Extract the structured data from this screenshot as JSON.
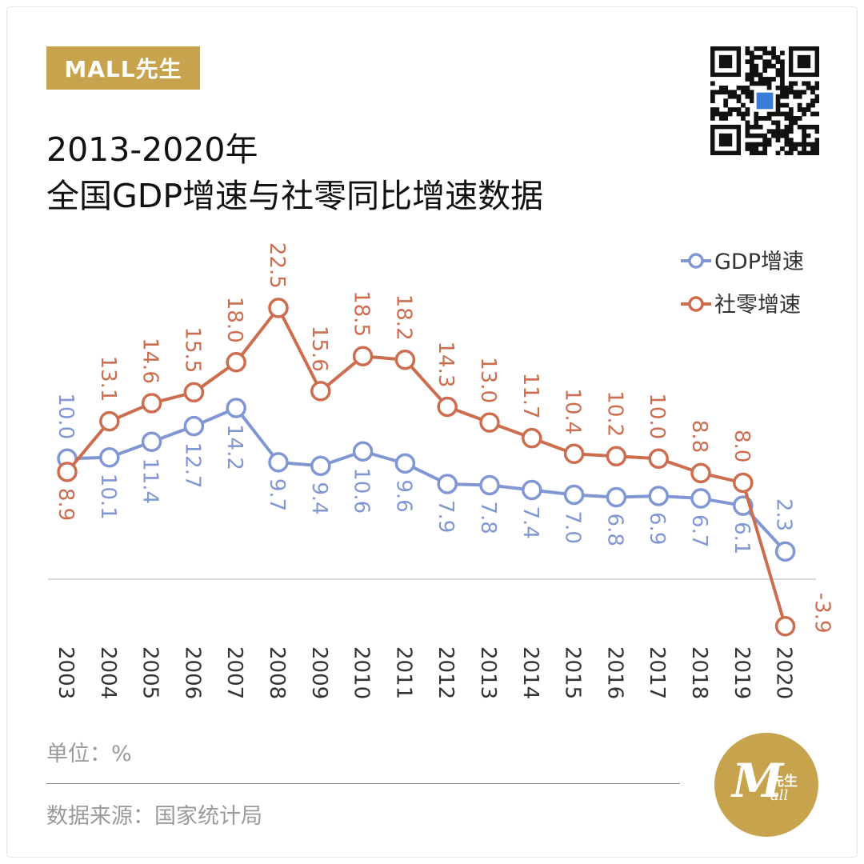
{
  "brand": {
    "tag": "MALL先生"
  },
  "header": {
    "title_line1": "2013-2020年",
    "title_line2": "全国GDP增速与社零同比增速数据"
  },
  "footer": {
    "unit": "单位：%",
    "source": "数据来源：国家统计局"
  },
  "logo": {
    "mark": "M",
    "zh": "先生",
    "en": "all"
  },
  "icons": {
    "qr": "qr-code-icon"
  },
  "colors": {
    "gold": "#c7a34d",
    "gdp": "#8097d4",
    "retail": "#cc6d4f"
  },
  "chart_data": {
    "type": "line",
    "categories": [
      "2003",
      "2004",
      "2005",
      "2006",
      "2007",
      "2008",
      "2009",
      "2010",
      "2011",
      "2012",
      "2013",
      "2014",
      "2015",
      "2016",
      "2017",
      "2018",
      "2019",
      "2020"
    ],
    "series": [
      {
        "name": "GDP增速",
        "color": "#8097d4",
        "values": [
          10.0,
          10.1,
          11.4,
          12.7,
          14.2,
          9.7,
          9.4,
          10.6,
          9.6,
          7.9,
          7.8,
          7.4,
          7.0,
          6.8,
          6.9,
          6.7,
          6.1,
          2.3
        ],
        "labels": [
          "10.0",
          "10.1",
          "11.4",
          "12.7",
          "14.2",
          "9.7",
          "9.4",
          "10.6",
          "9.6",
          "7.9",
          "7.8",
          "7.4",
          "7.0",
          "6.8",
          "6.9",
          "6.7",
          "6.1",
          "2.3"
        ],
        "label_side": [
          "above",
          "below",
          "below",
          "below",
          "below",
          "below",
          "below",
          "below",
          "below",
          "below",
          "below",
          "below",
          "below",
          "below",
          "below",
          "below",
          "below",
          "above"
        ]
      },
      {
        "name": "社零增速",
        "color": "#cc6d4f",
        "values": [
          8.9,
          13.1,
          14.6,
          15.5,
          18.0,
          22.5,
          15.6,
          18.5,
          18.2,
          14.3,
          13.0,
          11.7,
          10.4,
          10.2,
          10.0,
          8.8,
          8.0,
          -3.9
        ],
        "labels": [
          "8.9",
          "13.1",
          "14.6",
          "15.5",
          "18.0",
          "22.5",
          "15.6",
          "18.5",
          "18.2",
          "14.3",
          "13.0",
          "11.7",
          "10.4",
          "10.2",
          "10.0",
          "8.8",
          "8.0",
          "-3.9"
        ],
        "label_side": [
          "below",
          "above",
          "above",
          "above",
          "above",
          "above",
          "above",
          "above",
          "above",
          "above",
          "above",
          "above",
          "above",
          "above",
          "above",
          "above",
          "above",
          "right"
        ]
      }
    ],
    "legend_position": "top-right",
    "grid": false,
    "zero_line": true
  }
}
